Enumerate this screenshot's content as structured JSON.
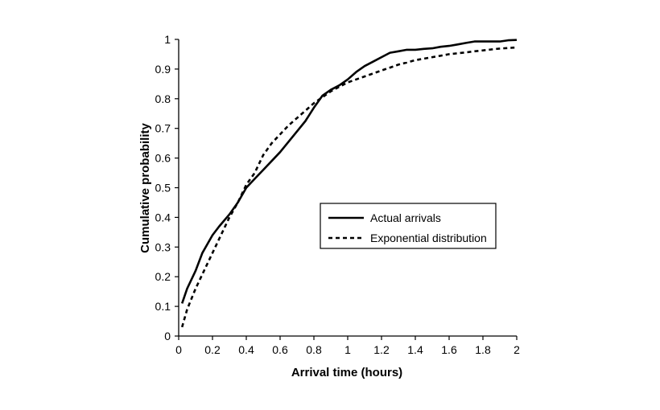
{
  "chart_data": {
    "type": "line",
    "title": "",
    "xlabel": "Arrival time (hours)",
    "ylabel": "Cumulative probability",
    "xlim": [
      0,
      2
    ],
    "ylim": [
      0,
      1
    ],
    "x_ticks": [
      0,
      0.2,
      0.4,
      0.6,
      0.8,
      1,
      1.2,
      1.4,
      1.6,
      1.8,
      2
    ],
    "x_tick_labels": [
      "0",
      "0.2",
      "0.4",
      "0.6",
      "0.8",
      "1",
      "1.2",
      "1.4",
      "1.6",
      "1.8",
      "2"
    ],
    "y_ticks": [
      0,
      0.1,
      0.2,
      0.3,
      0.4,
      0.5,
      0.6,
      0.7,
      0.8,
      0.9,
      1
    ],
    "y_tick_labels": [
      "0",
      "0.1",
      "0.2",
      "0.3",
      "0.4",
      "0.5",
      "0.6",
      "0.7",
      "0.8",
      "0.9",
      "1"
    ],
    "grid": false,
    "legend_position": "right-center",
    "colors": {
      "line": "#000000",
      "axis": "#000000",
      "background": "#ffffff"
    },
    "series": [
      {
        "name": "Actual arrivals",
        "style": "solid",
        "x": [
          0.02,
          0.05,
          0.1,
          0.14,
          0.2,
          0.24,
          0.3,
          0.35,
          0.4,
          0.45,
          0.5,
          0.55,
          0.6,
          0.65,
          0.7,
          0.75,
          0.8,
          0.85,
          0.9,
          0.95,
          1.0,
          1.05,
          1.1,
          1.15,
          1.2,
          1.25,
          1.3,
          1.35,
          1.4,
          1.45,
          1.5,
          1.55,
          1.6,
          1.65,
          1.7,
          1.75,
          1.8,
          1.85,
          1.9,
          1.95,
          2.0
        ],
        "y": [
          0.11,
          0.16,
          0.22,
          0.28,
          0.34,
          0.37,
          0.41,
          0.45,
          0.5,
          0.53,
          0.56,
          0.59,
          0.62,
          0.655,
          0.69,
          0.725,
          0.77,
          0.81,
          0.83,
          0.845,
          0.865,
          0.89,
          0.91,
          0.925,
          0.94,
          0.955,
          0.96,
          0.965,
          0.965,
          0.968,
          0.97,
          0.975,
          0.978,
          0.983,
          0.988,
          0.993,
          0.993,
          0.993,
          0.993,
          0.997,
          0.998
        ]
      },
      {
        "name": "Exponential distribution",
        "style": "dashed",
        "x": [
          0.02,
          0.05,
          0.1,
          0.15,
          0.2,
          0.25,
          0.3,
          0.35,
          0.4,
          0.45,
          0.5,
          0.55,
          0.6,
          0.65,
          0.7,
          0.75,
          0.8,
          0.85,
          0.9,
          0.95,
          1.0,
          1.05,
          1.1,
          1.15,
          1.2,
          1.25,
          1.3,
          1.35,
          1.4,
          1.45,
          1.5,
          1.55,
          1.6,
          1.65,
          1.7,
          1.75,
          1.8,
          1.85,
          1.9,
          1.95,
          2.0
        ],
        "y": [
          0.03,
          0.09,
          0.16,
          0.22,
          0.28,
          0.34,
          0.4,
          0.45,
          0.51,
          0.55,
          0.61,
          0.65,
          0.68,
          0.71,
          0.735,
          0.76,
          0.785,
          0.805,
          0.825,
          0.84,
          0.855,
          0.865,
          0.875,
          0.885,
          0.895,
          0.905,
          0.915,
          0.922,
          0.93,
          0.935,
          0.94,
          0.945,
          0.95,
          0.953,
          0.956,
          0.96,
          0.963,
          0.966,
          0.969,
          0.971,
          0.973
        ]
      }
    ]
  }
}
